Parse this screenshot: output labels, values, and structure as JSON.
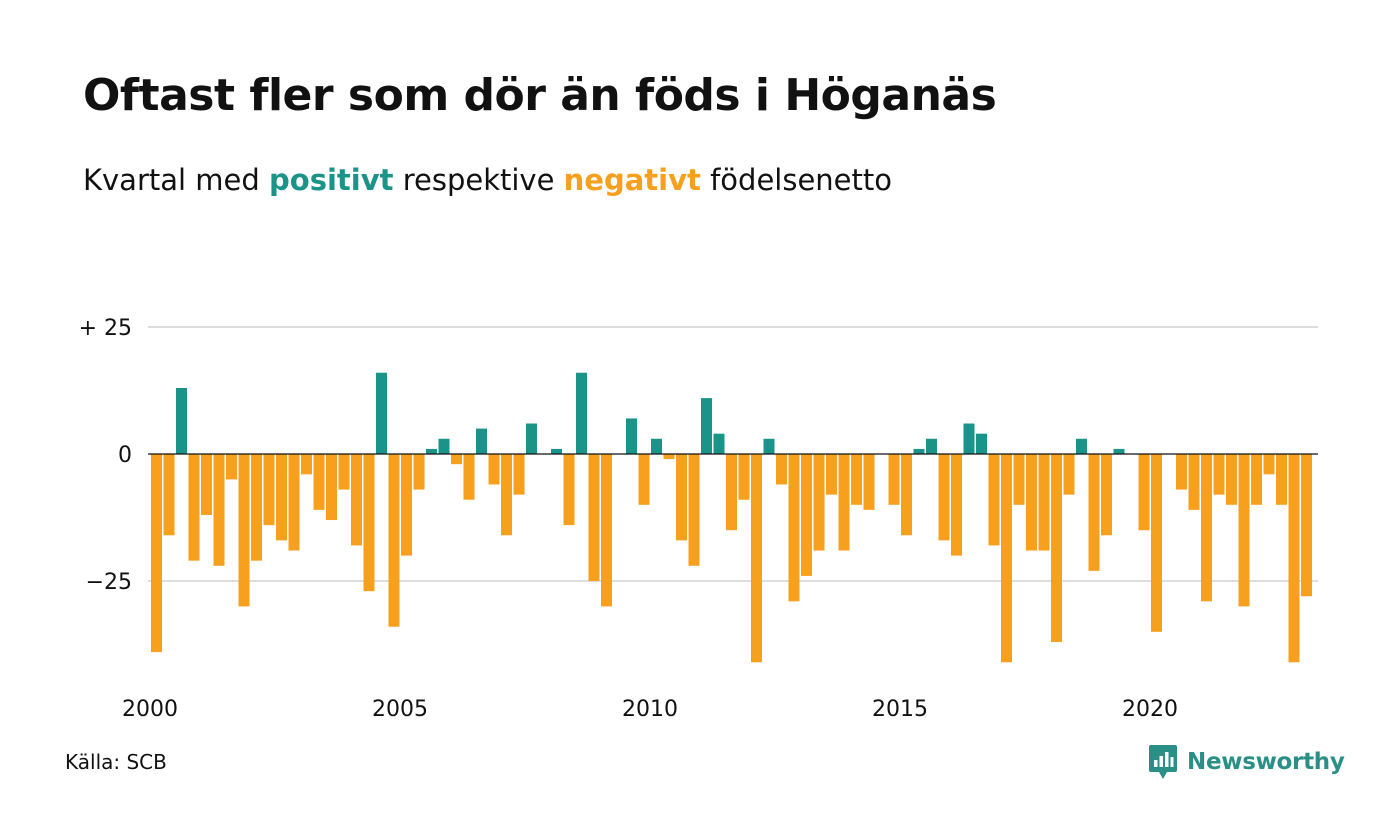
{
  "header": {
    "title": "Oftast fler som dör än föds i Höganäs",
    "subtitle_prefix": "Kvartal med ",
    "subtitle_positive": "positivt",
    "subtitle_middle": " respektive ",
    "subtitle_negative": "negativt",
    "subtitle_suffix": " födelsenetto"
  },
  "footer": {
    "source": "Källa: SCB",
    "brand": "Newsworthy"
  },
  "colors": {
    "positive": "#1a9488",
    "negative": "#f7a01e",
    "grid": "#dddddd",
    "brand": "#2a8f86"
  },
  "chart_data": {
    "type": "bar",
    "title": "Oftast fler som dör än föds i Höganäs",
    "subtitle": "Kvartal med positivt respektive negativt födelsenetto",
    "xlabel": "",
    "ylabel": "",
    "ylim": [
      -40,
      25
    ],
    "y_ticks": [
      {
        "value": 25,
        "label": "+ 25"
      },
      {
        "value": 0,
        "label": "0"
      },
      {
        "value": -25,
        "label": "−25"
      }
    ],
    "x_ticks": [
      "2000",
      "2005",
      "2010",
      "2015",
      "2020"
    ],
    "grid": true,
    "x_start": "2000 kv1",
    "frequency": "quarter",
    "values": [
      -39,
      -16,
      13,
      -21,
      -12,
      -22,
      -5,
      -30,
      -21,
      -14,
      -17,
      -19,
      -4,
      -11,
      -13,
      -7,
      -18,
      -27,
      16,
      -34,
      -20,
      -7,
      1,
      3,
      -2,
      -9,
      5,
      -6,
      -16,
      -8,
      6,
      0,
      1,
      -14,
      16,
      -25,
      -30,
      0,
      7,
      -10,
      3,
      -1,
      -17,
      -22,
      11,
      4,
      -15,
      -9,
      -41,
      3,
      -6,
      -29,
      -24,
      -19,
      -8,
      -19,
      -10,
      -11,
      0,
      -10,
      -16,
      1,
      3,
      -17,
      -20,
      6,
      4,
      -18,
      -41,
      -10,
      -19,
      -19,
      -37,
      -8,
      3,
      -23,
      -16,
      1,
      0,
      -15,
      -35,
      0,
      -7,
      -11,
      -29,
      -8,
      -10,
      -30,
      -10,
      -4,
      -10,
      -41,
      -28
    ]
  }
}
